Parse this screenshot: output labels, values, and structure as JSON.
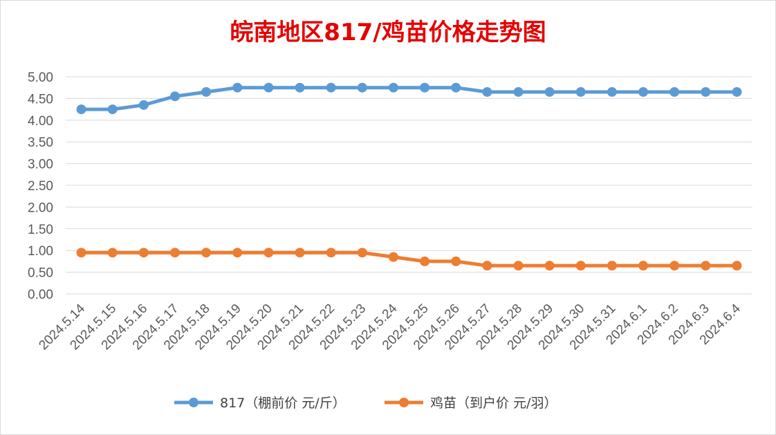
{
  "chart_data": {
    "type": "line",
    "title": "皖南地区817/鸡苗价格走势图",
    "categories": [
      "2024.5.14",
      "2024.5.15",
      "2024.5.16",
      "2024.5.17",
      "2024.5.18",
      "2024.5.19",
      "2024.5.20",
      "2024.5.21",
      "2024.5.22",
      "2024.5.23",
      "2024.5.24",
      "2024.5.25",
      "2024.5.26",
      "2024.5.27",
      "2024.5.28",
      "2024.5.29",
      "2024.5.30",
      "2024.5.31",
      "2024.6.1",
      "2024.6.2",
      "2024.6.3",
      "2024.6.4"
    ],
    "series": [
      {
        "name": "817（棚前价 元/斤）",
        "color": "#5b9bd5",
        "values": [
          4.25,
          4.25,
          4.35,
          4.55,
          4.65,
          4.75,
          4.75,
          4.75,
          4.75,
          4.75,
          4.75,
          4.75,
          4.75,
          4.65,
          4.65,
          4.65,
          4.65,
          4.65,
          4.65,
          4.65,
          4.65,
          4.65
        ]
      },
      {
        "name": "鸡苗（到户价 元/羽）",
        "color": "#ed7d31",
        "values": [
          0.95,
          0.95,
          0.95,
          0.95,
          0.95,
          0.95,
          0.95,
          0.95,
          0.95,
          0.95,
          0.85,
          0.75,
          0.75,
          0.65,
          0.65,
          0.65,
          0.65,
          0.65,
          0.65,
          0.65,
          0.65,
          0.65
        ]
      }
    ],
    "ylim": [
      0,
      5
    ],
    "yticks": [
      "0.00",
      "0.50",
      "1.00",
      "1.50",
      "2.00",
      "2.50",
      "3.00",
      "3.50",
      "4.00",
      "4.50",
      "5.00"
    ],
    "grid": true,
    "legend": "bottom",
    "title_color": "#e60000"
  }
}
